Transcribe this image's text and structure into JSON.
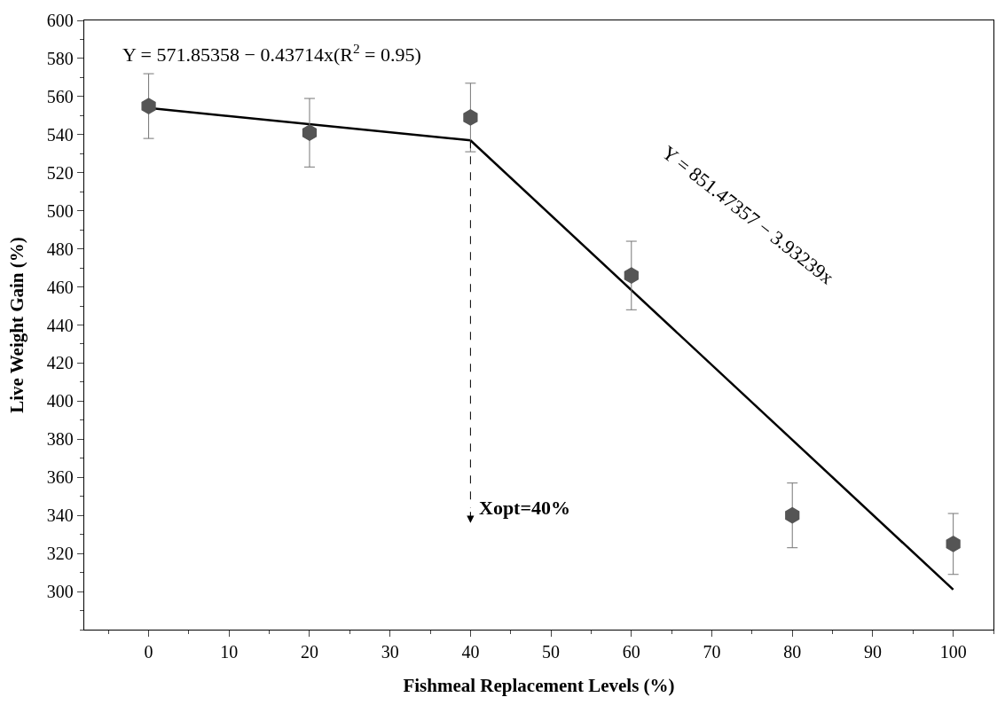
{
  "chart_data": {
    "type": "scatter",
    "xlabel": "Fishmeal Replacement Levels (%)",
    "ylabel": "Live Weight Gain (%)",
    "xlim": [
      -8,
      105
    ],
    "xticks": [
      0,
      10,
      20,
      30,
      40,
      50,
      60,
      70,
      80,
      90,
      100
    ],
    "ylim": [
      280,
      600
    ],
    "yticks": [
      300,
      320,
      340,
      360,
      380,
      400,
      420,
      440,
      460,
      480,
      500,
      520,
      540,
      560,
      580,
      600
    ],
    "grid": false,
    "series": [
      {
        "color": "#555555",
        "x": [
          0,
          20,
          40,
          60,
          80,
          100
        ],
        "values": [
          555,
          541,
          549,
          466,
          340,
          325
        ],
        "errors": [
          17,
          18,
          18,
          18,
          17,
          16
        ]
      },
      {
        "type": "line",
        "color": "#000000",
        "x": [
          0,
          40,
          100
        ],
        "values": [
          554,
          537,
          301
        ]
      }
    ],
    "annotations": [
      "Y = 571.85358 − 0.43714x(R$^{2}$ = 0.95)",
      "Y = 851.47357 − 3.93239x",
      "Xopt=40%"
    ]
  }
}
